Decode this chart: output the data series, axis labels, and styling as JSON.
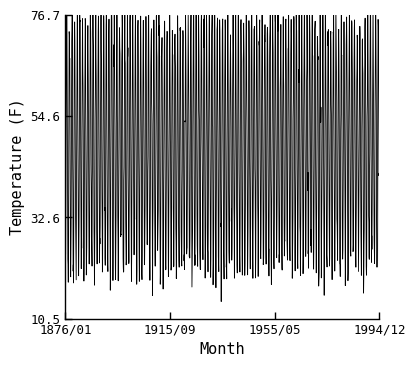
{
  "title": "",
  "xlabel": "Month",
  "ylabel": "Temperature (F)",
  "xlim_start": "1876/01",
  "xlim_end": "1994/12",
  "ylim": [
    10.5,
    76.7
  ],
  "yticks": [
    10.5,
    32.6,
    54.6,
    76.7
  ],
  "xticks_labels": [
    "1876/01",
    "1915/09",
    "1955/05",
    "1994/12"
  ],
  "line_color": "#000000",
  "line_width": 0.6,
  "bg_color": "#ffffff",
  "start_year": 1876,
  "start_month": 1,
  "end_year": 1994,
  "end_month": 12,
  "mean_temp": 48.5,
  "amplitude": 27.0,
  "noise_std": 3.5
}
